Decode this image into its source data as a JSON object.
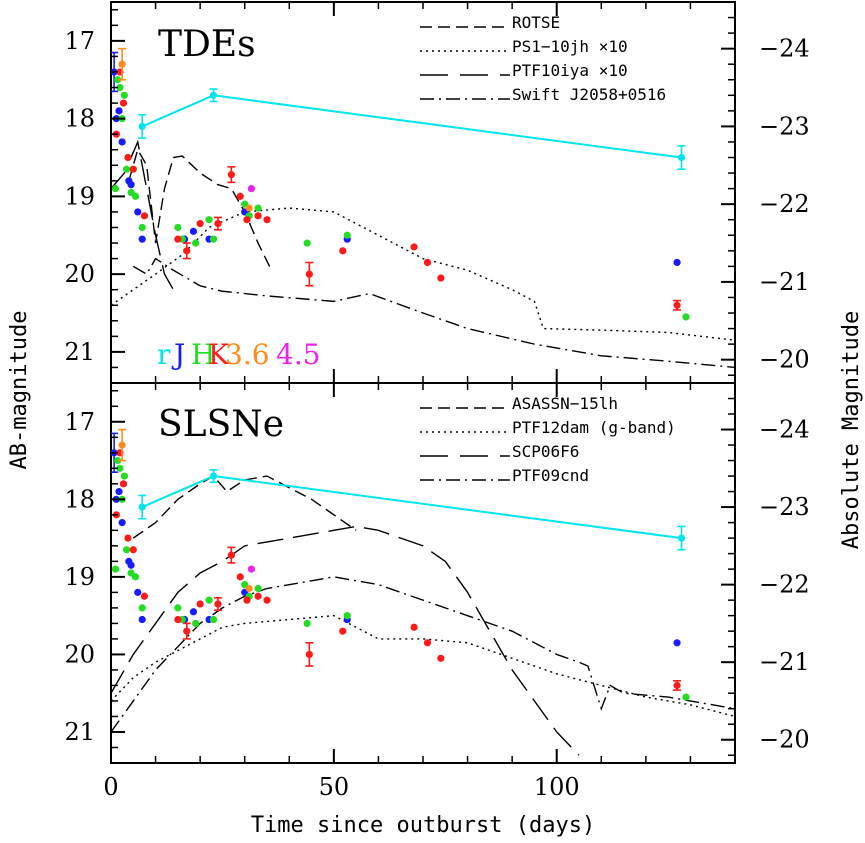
{
  "chart_data": [
    {
      "type": "scatter",
      "panel": "top",
      "title": "TDEs",
      "xlabel": "Time since outburst (days)",
      "ylabel": "AB-magnitude",
      "ylabel_right": "Absolute Magnitude",
      "xlim": [
        0,
        140
      ],
      "ylim": [
        21.4,
        16.5
      ],
      "yticks": [
        "17",
        "18",
        "19",
        "20",
        "21"
      ],
      "yticks_right": [
        "−24",
        "−23",
        "−22",
        "−21",
        "−20"
      ],
      "band_legend": [
        {
          "label": "r",
          "color": "#00e5ee"
        },
        {
          "label": "J",
          "color": "#1a1aff"
        },
        {
          "label": "H",
          "color": "#22dd22"
        },
        {
          "label": "K",
          "color": "#ff1a1a"
        },
        {
          "label": "3.6",
          "color": "#ff8c1a"
        },
        {
          "label": "4.5",
          "color": "#ee22ee"
        }
      ],
      "series": [
        {
          "name": "ROTSE",
          "style": "dash",
          "x": [
            4,
            6,
            8,
            10,
            12,
            14,
            16,
            20,
            24,
            27,
            30,
            33,
            36
          ],
          "y": [
            18.8,
            18.4,
            18.6,
            19.6,
            18.9,
            18.5,
            18.48,
            18.7,
            18.85,
            18.9,
            19.2,
            19.6,
            19.95
          ]
        },
        {
          "name": "PS1−10jh ×10",
          "style": "dot",
          "x": [
            0,
            5,
            10,
            16,
            22,
            30,
            40,
            50,
            60,
            70,
            80,
            90,
            95,
            97,
            110,
            125,
            140
          ],
          "y": [
            20.4,
            20.2,
            20.0,
            19.75,
            19.4,
            19.2,
            19.15,
            19.2,
            19.5,
            19.8,
            19.95,
            20.2,
            20.35,
            20.7,
            20.72,
            20.75,
            20.85
          ]
        },
        {
          "name": "PTF10iya ×10",
          "style": "longdash",
          "x": [
            0,
            3,
            6,
            8,
            10,
            12,
            14
          ],
          "y": [
            18.9,
            18.7,
            18.3,
            18.9,
            19.5,
            20.0,
            20.2
          ]
        },
        {
          "name": "Swift J2058+0516",
          "style": "dashdot",
          "x": [
            5,
            8,
            10,
            14,
            20,
            25,
            35,
            50,
            58,
            70,
            80,
            95,
            110,
            125,
            140
          ],
          "y": [
            19.9,
            20.0,
            19.8,
            19.95,
            20.15,
            20.22,
            20.28,
            20.35,
            20.25,
            20.5,
            20.7,
            20.9,
            21.05,
            21.12,
            21.2
          ]
        },
        {
          "name": "r",
          "style": "line",
          "x": [
            7,
            23,
            128
          ],
          "y": [
            18.1,
            17.7,
            18.5
          ]
        }
      ]
    },
    {
      "type": "scatter",
      "panel": "bottom",
      "title": "SLSNe",
      "xlabel": "Time since outburst (days)",
      "ylabel": "AB-magnitude",
      "ylabel_right": "Absolute Magnitude",
      "xlim": [
        0,
        140
      ],
      "ylim": [
        21.4,
        16.5
      ],
      "xticks": [
        "0",
        "50",
        "100"
      ],
      "yticks": [
        "17",
        "18",
        "19",
        "20",
        "21"
      ],
      "yticks_right": [
        "−24",
        "−23",
        "−22",
        "−21",
        "−20"
      ],
      "series": [
        {
          "name": "ASASSN−15lh",
          "style": "dash",
          "x": [
            5,
            10,
            15,
            20,
            23,
            26,
            30,
            35,
            40,
            45,
            50,
            55
          ],
          "y": [
            18.5,
            18.3,
            18.0,
            17.8,
            17.7,
            17.9,
            17.75,
            17.7,
            17.85,
            18.0,
            18.2,
            18.4
          ]
        },
        {
          "name": "PTF12dam (g-band)",
          "style": "dot",
          "x": [
            0,
            5,
            10,
            15,
            20,
            25,
            30,
            40,
            50,
            55,
            60,
            70,
            80,
            90,
            100,
            110,
            120,
            130,
            140
          ],
          "y": [
            20.6,
            20.3,
            20.1,
            19.95,
            19.8,
            19.65,
            19.6,
            19.55,
            19.5,
            19.65,
            19.8,
            19.8,
            19.85,
            20.05,
            20.25,
            20.4,
            20.55,
            20.65,
            20.8
          ]
        },
        {
          "name": "SCP06F6",
          "style": "longdash",
          "x": [
            0,
            5,
            10,
            15,
            20,
            25,
            30,
            40,
            50,
            55,
            60,
            65,
            70,
            75,
            80,
            85,
            90,
            95,
            100,
            105
          ],
          "y": [
            20.5,
            20.0,
            19.6,
            19.2,
            18.95,
            18.8,
            18.6,
            18.5,
            18.4,
            18.35,
            18.4,
            18.5,
            18.6,
            18.8,
            19.2,
            19.7,
            20.2,
            20.6,
            21.0,
            21.3
          ]
        },
        {
          "name": "PTF09cnd",
          "style": "dashdot",
          "x": [
            0,
            5,
            10,
            15,
            20,
            25,
            30,
            35,
            45,
            50,
            55,
            60,
            70,
            80,
            90,
            100,
            105,
            107,
            110,
            112,
            115,
            125,
            140
          ],
          "y": [
            21.0,
            20.6,
            20.2,
            19.9,
            19.6,
            19.4,
            19.25,
            19.15,
            19.05,
            19.0,
            19.05,
            19.1,
            19.3,
            19.5,
            19.7,
            20.0,
            20.1,
            20.15,
            20.7,
            20.4,
            20.5,
            20.55,
            20.7
          ]
        },
        {
          "name": "r",
          "style": "line",
          "x": [
            7,
            23,
            128
          ],
          "y": [
            18.1,
            17.7,
            18.5
          ]
        }
      ]
    }
  ],
  "photometry": [
    {
      "x": 7,
      "y": 18.1,
      "c": "r",
      "e": 0.15
    },
    {
      "x": 23,
      "y": 17.7,
      "c": "r",
      "e": 0.08
    },
    {
      "x": 128,
      "y": 18.5,
      "c": "r",
      "e": 0.15
    },
    {
      "x": 0.7,
      "y": 17.4,
      "c": "J",
      "e": 0.25
    },
    {
      "x": 1.2,
      "y": 18.0,
      "c": "J"
    },
    {
      "x": 1.8,
      "y": 17.9,
      "c": "J"
    },
    {
      "x": 2.5,
      "y": 18.3,
      "c": "J"
    },
    {
      "x": 4,
      "y": 18.8,
      "c": "J"
    },
    {
      "x": 4.5,
      "y": 18.85,
      "c": "J"
    },
    {
      "x": 6,
      "y": 19.2,
      "c": "J"
    },
    {
      "x": 7,
      "y": 19.55,
      "c": "J"
    },
    {
      "x": 16.5,
      "y": 19.55,
      "c": "J"
    },
    {
      "x": 18.5,
      "y": 19.45,
      "c": "J"
    },
    {
      "x": 22,
      "y": 19.55,
      "c": "J"
    },
    {
      "x": 30,
      "y": 19.2,
      "c": "J"
    },
    {
      "x": 53,
      "y": 19.55,
      "c": "J"
    },
    {
      "x": 127,
      "y": 19.85,
      "c": "J"
    },
    {
      "x": 1.5,
      "y": 17.5,
      "c": "H"
    },
    {
      "x": 2,
      "y": 17.6,
      "c": "H"
    },
    {
      "x": 3,
      "y": 17.7,
      "c": "H"
    },
    {
      "x": 1,
      "y": 18.9,
      "c": "H"
    },
    {
      "x": 2.5,
      "y": 18.0,
      "c": "H"
    },
    {
      "x": 3.5,
      "y": 18.65,
      "c": "H"
    },
    {
      "x": 4.5,
      "y": 18.95,
      "c": "H"
    },
    {
      "x": 5.5,
      "y": 19.0,
      "c": "H"
    },
    {
      "x": 7,
      "y": 19.4,
      "c": "H"
    },
    {
      "x": 15,
      "y": 19.4,
      "c": "H"
    },
    {
      "x": 16,
      "y": 19.55,
      "c": "H"
    },
    {
      "x": 19,
      "y": 19.6,
      "c": "H"
    },
    {
      "x": 22,
      "y": 19.3,
      "c": "H"
    },
    {
      "x": 23,
      "y": 19.55,
      "c": "H"
    },
    {
      "x": 30,
      "y": 19.1,
      "c": "H"
    },
    {
      "x": 31,
      "y": 19.25,
      "c": "H"
    },
    {
      "x": 33,
      "y": 19.15,
      "c": "H"
    },
    {
      "x": 44,
      "y": 19.6,
      "c": "H"
    },
    {
      "x": 53,
      "y": 19.5,
      "c": "H"
    },
    {
      "x": 129,
      "y": 20.55,
      "c": "H"
    },
    {
      "x": 2,
      "y": 17.4,
      "c": "K"
    },
    {
      "x": 2.8,
      "y": 17.8,
      "c": "K"
    },
    {
      "x": 1.2,
      "y": 18.2,
      "c": "K"
    },
    {
      "x": 3.8,
      "y": 18.5,
      "c": "K"
    },
    {
      "x": 5,
      "y": 18.65,
      "c": "K"
    },
    {
      "x": 7.5,
      "y": 19.25,
      "c": "K"
    },
    {
      "x": 15,
      "y": 19.55,
      "c": "K"
    },
    {
      "x": 17,
      "y": 19.7,
      "c": "K",
      "e": 0.1
    },
    {
      "x": 20,
      "y": 19.35,
      "c": "K"
    },
    {
      "x": 24,
      "y": 19.35,
      "c": "K",
      "e": 0.08
    },
    {
      "x": 27,
      "y": 18.72,
      "c": "K",
      "e": 0.1
    },
    {
      "x": 29,
      "y": 19.0,
      "c": "K"
    },
    {
      "x": 30.5,
      "y": 19.3,
      "c": "K"
    },
    {
      "x": 33,
      "y": 19.25,
      "c": "K"
    },
    {
      "x": 35,
      "y": 19.3,
      "c": "K"
    },
    {
      "x": 44.5,
      "y": 20.0,
      "c": "K",
      "e": 0.15
    },
    {
      "x": 52,
      "y": 19.7,
      "c": "K"
    },
    {
      "x": 68,
      "y": 19.65,
      "c": "K"
    },
    {
      "x": 71,
      "y": 19.85,
      "c": "K"
    },
    {
      "x": 74,
      "y": 20.05,
      "c": "K"
    },
    {
      "x": 127,
      "y": 20.4,
      "c": "K",
      "e": 0.06
    },
    {
      "x": 2.5,
      "y": 17.3,
      "c": "3.6",
      "e": 0.2
    },
    {
      "x": 31,
      "y": 19.15,
      "c": "3.6"
    },
    {
      "x": 31.5,
      "y": 18.9,
      "c": "4.5"
    }
  ]
}
